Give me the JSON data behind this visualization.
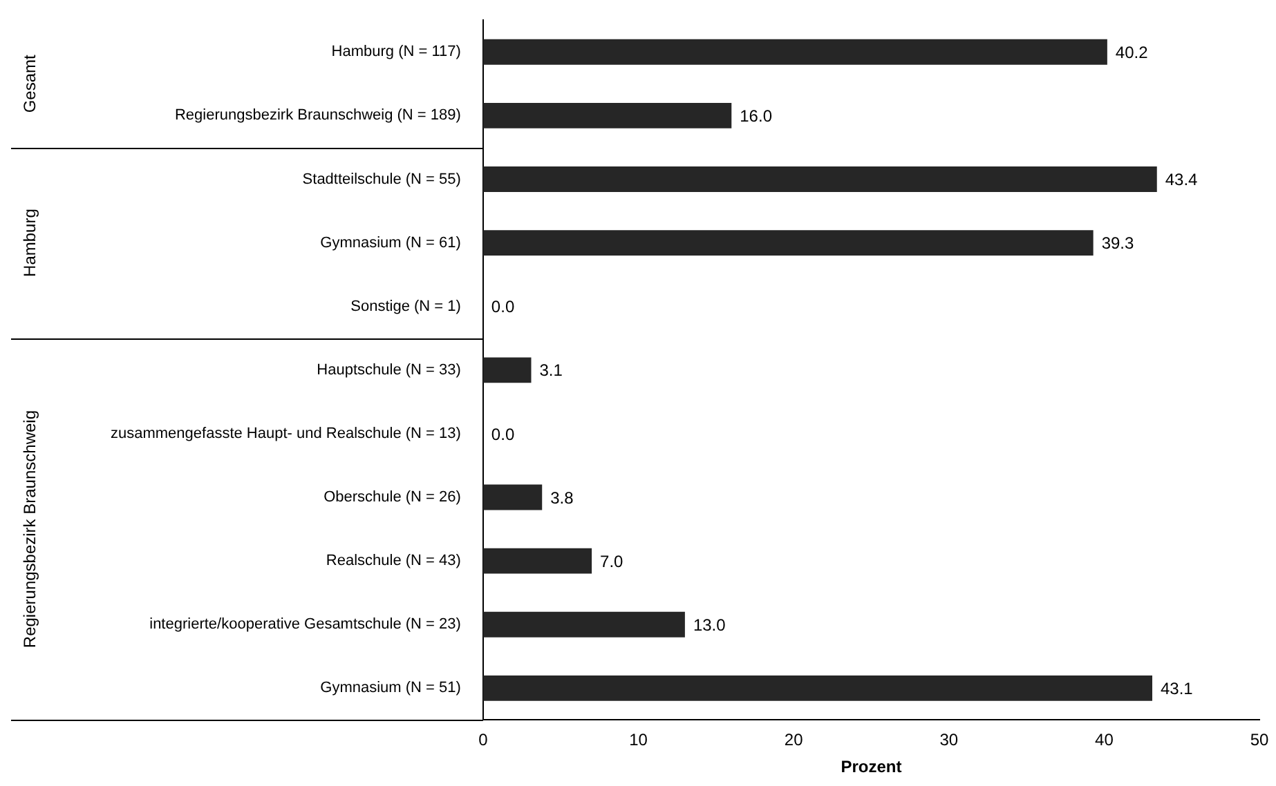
{
  "chart_data": {
    "type": "bar",
    "orientation": "horizontal",
    "categories": [
      "Hamburg (N = 117)",
      "Regierungsbezirk Braunschweig (N = 189)",
      "Stadtteilschule (N = 55)",
      "Gymnasium (N = 61)",
      "Sonstige (N = 1)",
      "Hauptschule (N = 33)",
      "zusammengefasste Haupt- und Realschule (N = 13)",
      "Oberschule (N = 26)",
      "Realschule (N = 43)",
      "integrierte/kooperative Gesamtschule (N = 23)",
      "Gymnasium (N = 51)"
    ],
    "values": [
      40.2,
      16.0,
      43.4,
      39.3,
      0.0,
      3.1,
      0.0,
      3.8,
      7.0,
      13.0,
      43.1
    ],
    "value_labels": [
      "40.2",
      "16.0",
      "43.4",
      "39.3",
      "0.0",
      "3.1",
      "0.0",
      "3.8",
      "7.0",
      "13.0",
      "43.1"
    ],
    "color": "#262626",
    "xlabel": "Prozent",
    "xlim": [
      0,
      50
    ],
    "xticks": [
      0,
      10,
      20,
      30,
      40,
      50
    ],
    "grid": false,
    "legend": false,
    "annotations": [
      "Gesamt",
      "Hamburg",
      "Regierungsbezirk Braunschweig"
    ]
  }
}
